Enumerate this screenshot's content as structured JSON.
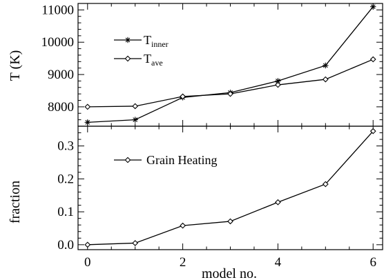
{
  "chart_data": [
    {
      "type": "line",
      "ylabel": "T (K)",
      "ylim": [
        7400,
        11200
      ],
      "yticks": [
        8000,
        9000,
        10000,
        11000
      ],
      "yticklabels": [
        "8000",
        "9000",
        "10000",
        "11000"
      ],
      "xlim": [
        -0.2,
        6.2
      ],
      "legend_position": "upper-left",
      "series": [
        {
          "label_main": "T",
          "label_sub": "inner",
          "marker": "asterisk",
          "x": [
            0,
            1,
            2,
            3,
            4,
            5,
            6
          ],
          "y": [
            7520,
            7600,
            8290,
            8440,
            8800,
            9280,
            11100
          ]
        },
        {
          "label_main": "T",
          "label_sub": "ave",
          "marker": "diamond",
          "x": [
            0,
            1,
            2,
            3,
            4,
            5,
            6
          ],
          "y": [
            8000,
            8020,
            8320,
            8400,
            8680,
            8850,
            9470
          ]
        }
      ]
    },
    {
      "type": "line",
      "ylabel": "fraction",
      "xlabel": "model no.",
      "ylim": [
        -0.015,
        0.36
      ],
      "yticks": [
        0.0,
        0.1,
        0.2,
        0.3
      ],
      "yticklabels": [
        "0.0",
        "0.1",
        "0.2",
        "0.3"
      ],
      "xlim": [
        -0.2,
        6.2
      ],
      "xticks": [
        0,
        2,
        4,
        6
      ],
      "xticklabels": [
        "0",
        "2",
        "4",
        "6"
      ],
      "legend_position": "upper-left",
      "series": [
        {
          "name": "Grain Heating",
          "marker": "diamond",
          "x": [
            0,
            1,
            2,
            3,
            4,
            5,
            6
          ],
          "y": [
            0.0,
            0.005,
            0.058,
            0.071,
            0.129,
            0.184,
            0.345
          ]
        }
      ]
    }
  ]
}
